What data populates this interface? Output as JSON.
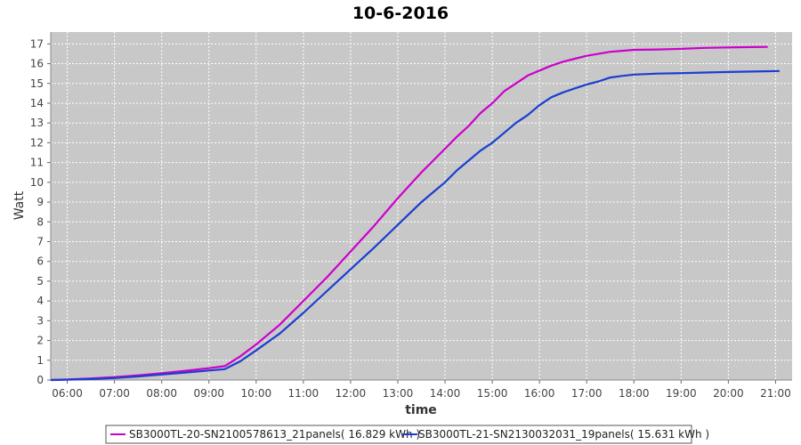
{
  "chart_data": {
    "type": "line",
    "title": "10-6-2016",
    "xlabel": "time",
    "ylabel": "Watt",
    "xlim": [
      "05:39",
      "21:21"
    ],
    "ylim": [
      0,
      17.6
    ],
    "x_ticks": [
      "06:00",
      "07:00",
      "08:00",
      "09:00",
      "10:00",
      "11:00",
      "12:00",
      "13:00",
      "14:00",
      "15:00",
      "16:00",
      "17:00",
      "18:00",
      "19:00",
      "20:00",
      "21:00"
    ],
    "y_ticks": [
      0,
      1,
      2,
      3,
      4,
      5,
      6,
      7,
      8,
      9,
      10,
      11,
      12,
      13,
      14,
      15,
      16,
      17
    ],
    "grid": true,
    "background": "#c8c8c8",
    "legend_position": "bottom",
    "series": [
      {
        "name": "SB3000TL-20-SN2100578613_21panels( 16.829 kWh )",
        "color": "#cc00cc",
        "points": [
          [
            "05:39",
            0
          ],
          [
            "06:00",
            0.03
          ],
          [
            "06:30",
            0.08
          ],
          [
            "07:00",
            0.15
          ],
          [
            "07:30",
            0.24
          ],
          [
            "08:00",
            0.34
          ],
          [
            "08:30",
            0.47
          ],
          [
            "09:00",
            0.6
          ],
          [
            "09:20",
            0.7
          ],
          [
            "09:40",
            1.2
          ],
          [
            "10:00",
            1.8
          ],
          [
            "10:30",
            2.8
          ],
          [
            "11:00",
            4.0
          ],
          [
            "11:30",
            5.2
          ],
          [
            "12:00",
            6.5
          ],
          [
            "12:30",
            7.8
          ],
          [
            "13:00",
            9.2
          ],
          [
            "13:30",
            10.5
          ],
          [
            "13:45",
            11.1
          ],
          [
            "14:00",
            11.7
          ],
          [
            "14:15",
            12.3
          ],
          [
            "14:30",
            12.85
          ],
          [
            "14:45",
            13.5
          ],
          [
            "15:00",
            14.0
          ],
          [
            "15:15",
            14.6
          ],
          [
            "15:30",
            15.0
          ],
          [
            "15:45",
            15.4
          ],
          [
            "16:00",
            15.65
          ],
          [
            "16:15",
            15.9
          ],
          [
            "16:30",
            16.1
          ],
          [
            "16:45",
            16.25
          ],
          [
            "17:00",
            16.4
          ],
          [
            "17:15",
            16.5
          ],
          [
            "17:30",
            16.6
          ],
          [
            "17:45",
            16.65
          ],
          [
            "18:00",
            16.7
          ],
          [
            "18:30",
            16.72
          ],
          [
            "19:00",
            16.75
          ],
          [
            "19:30",
            16.8
          ],
          [
            "20:00",
            16.82
          ],
          [
            "20:30",
            16.84
          ],
          [
            "20:50",
            16.85
          ]
        ]
      },
      {
        "name": "SB3000TL-21-SN2130032031_19panels( 15.631 kWh )",
        "color": "#1a3fd0",
        "points": [
          [
            "05:39",
            0
          ],
          [
            "06:00",
            0.02
          ],
          [
            "06:30",
            0.05
          ],
          [
            "07:00",
            0.1
          ],
          [
            "07:30",
            0.18
          ],
          [
            "08:00",
            0.28
          ],
          [
            "08:30",
            0.38
          ],
          [
            "09:00",
            0.48
          ],
          [
            "09:20",
            0.55
          ],
          [
            "09:40",
            0.95
          ],
          [
            "10:00",
            1.5
          ],
          [
            "10:30",
            2.35
          ],
          [
            "11:00",
            3.4
          ],
          [
            "11:30",
            4.5
          ],
          [
            "12:00",
            5.6
          ],
          [
            "12:30",
            6.7
          ],
          [
            "13:00",
            7.85
          ],
          [
            "13:30",
            9.0
          ],
          [
            "13:45",
            9.5
          ],
          [
            "14:00",
            10.0
          ],
          [
            "14:15",
            10.6
          ],
          [
            "14:30",
            11.1
          ],
          [
            "14:45",
            11.6
          ],
          [
            "15:00",
            12.0
          ],
          [
            "15:15",
            12.5
          ],
          [
            "15:30",
            13.0
          ],
          [
            "15:45",
            13.4
          ],
          [
            "16:00",
            13.9
          ],
          [
            "16:15",
            14.3
          ],
          [
            "16:30",
            14.55
          ],
          [
            "16:45",
            14.75
          ],
          [
            "17:00",
            14.95
          ],
          [
            "17:15",
            15.1
          ],
          [
            "17:30",
            15.3
          ],
          [
            "17:45",
            15.38
          ],
          [
            "18:00",
            15.45
          ],
          [
            "18:30",
            15.5
          ],
          [
            "19:00",
            15.52
          ],
          [
            "19:30",
            15.55
          ],
          [
            "20:00",
            15.58
          ],
          [
            "20:30",
            15.6
          ],
          [
            "21:05",
            15.63
          ]
        ]
      }
    ]
  }
}
